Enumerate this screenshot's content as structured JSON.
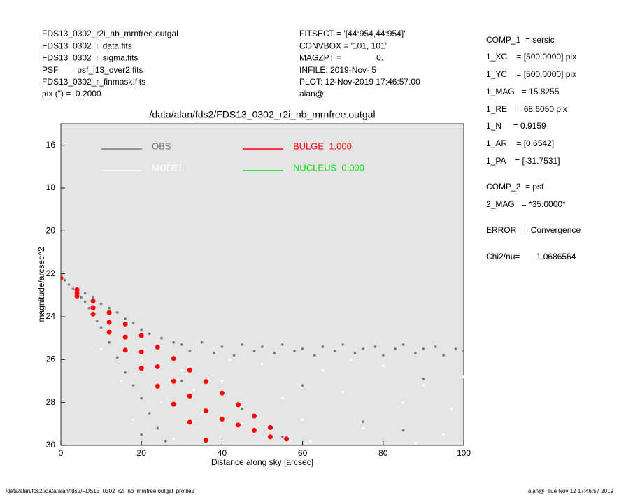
{
  "header": {
    "left": [
      "FDS13_0302_r2i_nb_mrnfree.outgal",
      "FDS13_0302_i_data.fits",
      "FDS13_0302_i_sigma.fits",
      "PSF     = psf_i13_over2.fits",
      "FDS13_0302_r_finmask.fits",
      "pix (\") =  0.2000"
    ],
    "middle": [
      "FITSECT = '[44:954,44:954]'",
      "CONVBOX = '101, 101'",
      "MAGZPT =               0.",
      "INFILE: 2019-Nov- 5",
      "PLOT: 12-Nov-2019 17:46:57.00",
      "alan@"
    ],
    "right": [
      "COMP_1  = sersic",
      "1_XC    = [500.0000] pix",
      "1_YC    = [500.0000] pix",
      "1_MAG   = 15.8255",
      "1_RE    = 68.6050 pix",
      "1_N     = 0.9159",
      "1_AR    = [0.6542]",
      "1_PA    = [-31.7531]",
      "COMP_2  = psf",
      "2_MAG   = *35.0000*",
      "ERROR   = Convergence",
      "Chi2/nu=       1.0686564"
    ]
  },
  "footer": {
    "left": "/data/alan/fds2//data/alan/fds2/FDS13_0302_r2i_nb_mrnfree.outgal_profile2",
    "right": "alan@  Tue Nov 12 17:46:57 2019"
  },
  "chart_data": {
    "type": "scatter",
    "title": "/data/alan/fds2/FDS13_0302_r2i_nb_mrnfree.outgal",
    "x_label": "Distance along sky [arcsec]",
    "y_label": "magnitude/arcsec^2",
    "xlim": [
      0,
      100
    ],
    "xticks": [
      0,
      20,
      40,
      60,
      80,
      100
    ],
    "ylim": [
      30,
      15
    ],
    "yticks": [
      16,
      18,
      20,
      22,
      24,
      26,
      28,
      30
    ],
    "background": "#e5e5e5",
    "series": [
      {
        "name": "OBS",
        "color": "#777777",
        "x": [
          0,
          1,
          2,
          3,
          4,
          5,
          6,
          7,
          8,
          9,
          10,
          12,
          14,
          16,
          18,
          20,
          22,
          24,
          26,
          6,
          8,
          10,
          12,
          14,
          16,
          18,
          20,
          22,
          25,
          28,
          30,
          32,
          35,
          38,
          40,
          43,
          45,
          48,
          50,
          53,
          55,
          58,
          60,
          63,
          65,
          68,
          70,
          73,
          75,
          78,
          80,
          83,
          85,
          88,
          90,
          93,
          95,
          98,
          100,
          30,
          45,
          60,
          75,
          90,
          20,
          55,
          85
        ],
        "values": [
          22.2,
          22.3,
          22.5,
          22.7,
          22.9,
          23.1,
          23.3,
          23.6,
          23.9,
          24.2,
          24.5,
          25.2,
          25.9,
          26.6,
          27.2,
          27.8,
          28.5,
          29.2,
          29.8,
          22.9,
          23.1,
          23.4,
          23.6,
          23.8,
          24.1,
          24.3,
          24.6,
          24.8,
          25.0,
          25.2,
          25.3,
          25.6,
          25.2,
          25.7,
          25.4,
          25.8,
          25.3,
          25.6,
          25.4,
          25.7,
          25.3,
          25.6,
          25.5,
          25.8,
          25.4,
          25.6,
          25.3,
          25.7,
          25.5,
          25.4,
          25.8,
          25.5,
          25.3,
          25.7,
          25.5,
          25.4,
          25.8,
          25.5,
          25.6,
          27.0,
          28.3,
          27.2,
          28.9,
          26.9,
          29.5,
          29.6,
          29.3
        ]
      },
      {
        "name": "MODEL",
        "color": "#ffffff",
        "x": [
          10,
          15,
          20,
          25,
          30,
          35,
          40,
          45,
          50,
          55,
          60,
          65,
          70,
          75,
          80,
          85,
          90,
          95,
          100,
          28,
          42,
          62,
          88,
          18,
          52,
          72,
          97,
          33
        ],
        "values": [
          25.5,
          27,
          26,
          28,
          26.5,
          28.5,
          27,
          29,
          26.2,
          27.8,
          28.8,
          26.5,
          27.5,
          29.2,
          26.3,
          28,
          27.2,
          29.5,
          26.8,
          29.7,
          26.0,
          29.8,
          29.9,
          28.8,
          29.3,
          26.0,
          28.3,
          27.4
        ]
      },
      {
        "name": "BULGE  1.000",
        "color": "#ff0000",
        "x": [
          0,
          4,
          4,
          4,
          8,
          8,
          8,
          12,
          12,
          12,
          16,
          16,
          16,
          20,
          20,
          20,
          24,
          24,
          24,
          28,
          28,
          28,
          32,
          32,
          32,
          36,
          36,
          36,
          40,
          40,
          44,
          44,
          48,
          48,
          52,
          52,
          56
        ],
        "values": [
          22.2,
          22.74,
          22.89,
          23.04,
          23.27,
          23.58,
          23.88,
          23.81,
          24.26,
          24.72,
          24.34,
          24.95,
          25.56,
          24.88,
          25.64,
          26.4,
          25.42,
          26.33,
          27.24,
          25.95,
          27.01,
          28.08,
          26.49,
          27.7,
          28.92,
          27.02,
          28.39,
          29.76,
          27.56,
          28.78,
          28.1,
          29.05,
          28.63,
          29.3,
          29.17,
          29.6,
          29.7
        ]
      },
      {
        "name": "NUCLEUS  0.000",
        "color": "#00dd00"
      }
    ]
  }
}
